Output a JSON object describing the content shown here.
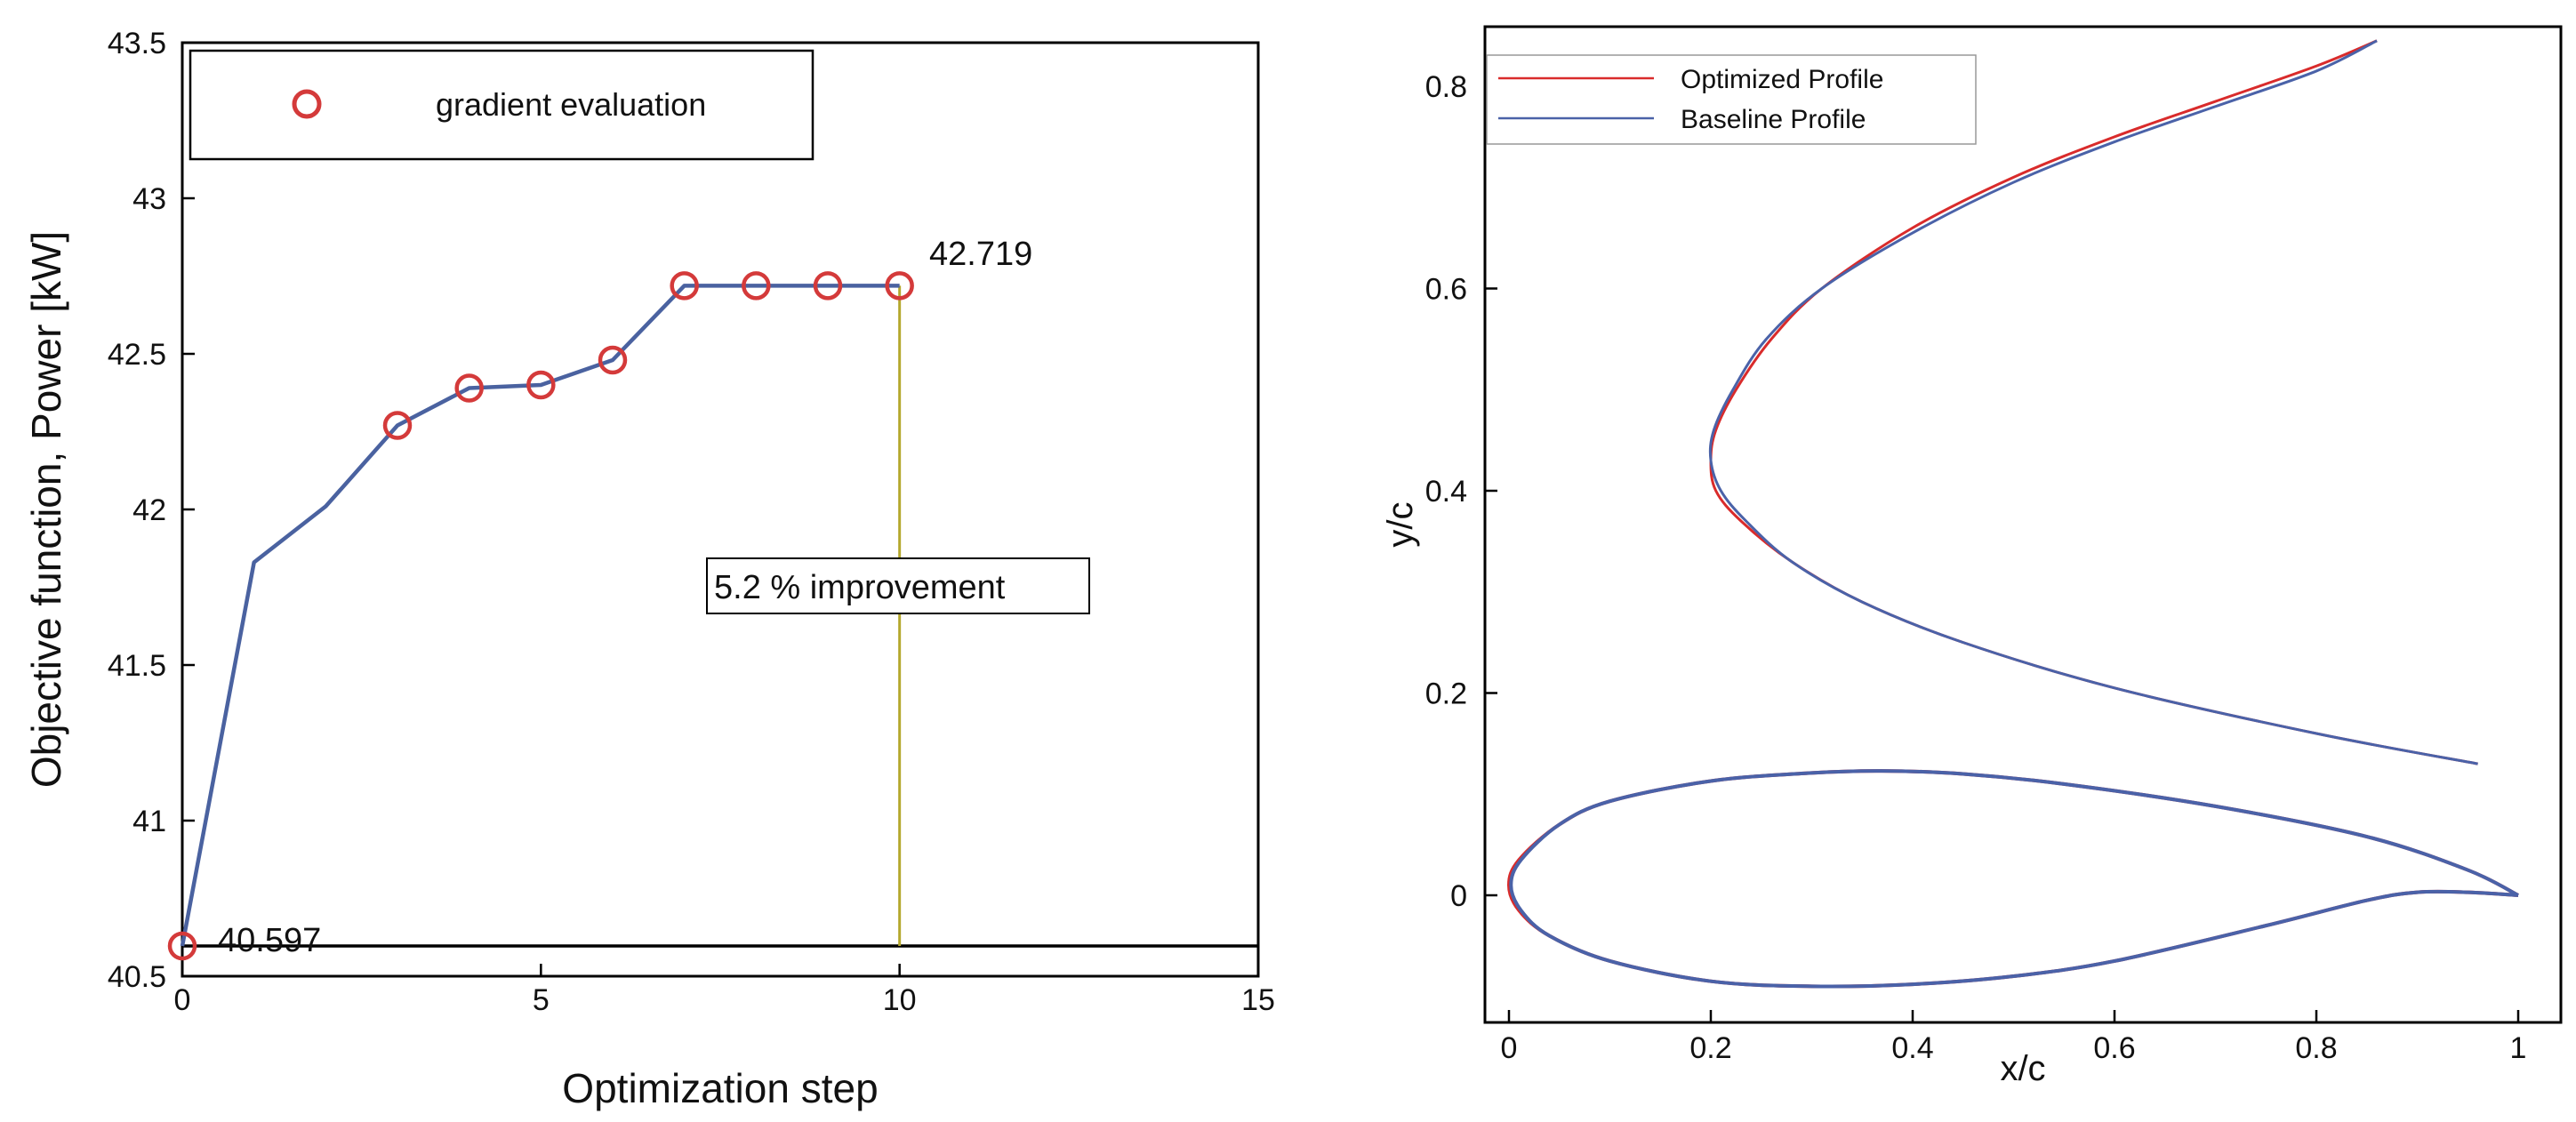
{
  "chart_data": [
    {
      "type": "line",
      "xlabel": "Optimization step",
      "ylabel": "Objective function, Power [kW]",
      "xlim": [
        0,
        15
      ],
      "ylim": [
        40.5,
        43.5
      ],
      "x_ticks": [
        "0",
        "5",
        "10",
        "15"
      ],
      "y_ticks": [
        "40.5",
        "41",
        "41.5",
        "42",
        "42.5",
        "43",
        "43.5"
      ],
      "series": [
        {
          "name": "objective",
          "x": [
            0,
            1,
            2,
            3,
            4,
            5,
            6,
            7,
            8,
            9,
            10
          ],
          "values": [
            40.597,
            41.83,
            42.01,
            42.27,
            42.39,
            42.4,
            42.48,
            42.719,
            42.719,
            42.719,
            42.719
          ],
          "color": "#4a62a0"
        }
      ],
      "markers": {
        "name": "gradient evaluation",
        "x": [
          0,
          3,
          4,
          5,
          6,
          7,
          8,
          9,
          10
        ],
        "values": [
          40.597,
          42.27,
          42.39,
          42.4,
          42.48,
          42.719,
          42.719,
          42.719,
          42.719
        ],
        "color": "#d43a3a"
      },
      "baseline_value": 40.597,
      "baseline_color": "#000000",
      "improvement_line": {
        "x": 10,
        "from": 40.597,
        "to": 42.719,
        "color": "#b5a82e"
      },
      "annotations": {
        "start_value": "40.597",
        "end_value": "42.719",
        "improvement": "5.2 % improvement"
      },
      "legend": {
        "label": "gradient evaluation",
        "position": "top-left"
      }
    },
    {
      "type": "line",
      "xlabel": "x/c",
      "ylabel": "y/c",
      "xlim": [
        -0.02,
        1.05
      ],
      "ylim": [
        -0.1,
        0.85
      ],
      "x_ticks": [
        "0",
        "0.2",
        "0.4",
        "0.6",
        "0.8",
        "1"
      ],
      "y_ticks": [
        "0",
        "0.2",
        "0.4",
        "0.6",
        "0.8"
      ],
      "legend": {
        "position": "top-left",
        "entries": [
          "Optimized Profile",
          "Baseline Profile"
        ]
      },
      "series": [
        {
          "name": "Optimized Profile",
          "color": "#d92b2b",
          "upper_profile_x": [
            0.96,
            0.8,
            0.6,
            0.45,
            0.35,
            0.28,
            0.23,
            0.205,
            0.2,
            0.205,
            0.225,
            0.26,
            0.31,
            0.4,
            0.5,
            0.6,
            0.7,
            0.8,
            0.86
          ],
          "upper_profile_y": [
            0.13,
            0.16,
            0.205,
            0.25,
            0.29,
            0.33,
            0.37,
            0.4,
            0.43,
            0.46,
            0.5,
            0.55,
            0.6,
            0.66,
            0.71,
            0.75,
            0.785,
            0.82,
            0.845
          ],
          "lower_profile_x": [
            1.0,
            0.95,
            0.9,
            0.85,
            0.75,
            0.6,
            0.5,
            0.4,
            0.3,
            0.2,
            0.1,
            0.04,
            0.01,
            0.0,
            0.01,
            0.05,
            0.1,
            0.2,
            0.3,
            0.37,
            0.45,
            0.55,
            0.7,
            0.85,
            0.95,
            1.0
          ],
          "lower_profile_y": [
            0.0,
            0.003,
            0.003,
            -0.005,
            -0.03,
            -0.065,
            -0.08,
            -0.088,
            -0.09,
            -0.085,
            -0.065,
            -0.04,
            -0.015,
            0.01,
            0.035,
            0.07,
            0.093,
            0.113,
            0.121,
            0.123,
            0.12,
            0.11,
            0.088,
            0.058,
            0.025,
            0.0
          ]
        },
        {
          "name": "Baseline Profile",
          "color": "#4a62a8",
          "upper_profile_x": [
            0.96,
            0.8,
            0.6,
            0.45,
            0.35,
            0.28,
            0.235,
            0.21,
            0.2,
            0.203,
            0.222,
            0.255,
            0.31,
            0.4,
            0.5,
            0.6,
            0.7,
            0.8,
            0.86
          ],
          "upper_profile_y": [
            0.13,
            0.16,
            0.205,
            0.25,
            0.29,
            0.33,
            0.37,
            0.4,
            0.43,
            0.46,
            0.5,
            0.55,
            0.6,
            0.655,
            0.705,
            0.745,
            0.78,
            0.815,
            0.845
          ],
          "lower_profile_x": [
            1.0,
            0.95,
            0.9,
            0.85,
            0.75,
            0.6,
            0.5,
            0.4,
            0.3,
            0.2,
            0.1,
            0.04,
            0.012,
            0.002,
            0.012,
            0.05,
            0.1,
            0.2,
            0.3,
            0.37,
            0.45,
            0.55,
            0.7,
            0.85,
            0.95,
            1.0
          ],
          "lower_profile_y": [
            0.0,
            0.003,
            0.003,
            -0.005,
            -0.03,
            -0.065,
            -0.08,
            -0.088,
            -0.09,
            -0.085,
            -0.065,
            -0.04,
            -0.015,
            0.01,
            0.035,
            0.07,
            0.093,
            0.113,
            0.121,
            0.123,
            0.12,
            0.11,
            0.088,
            0.058,
            0.025,
            0.0
          ]
        }
      ]
    }
  ]
}
